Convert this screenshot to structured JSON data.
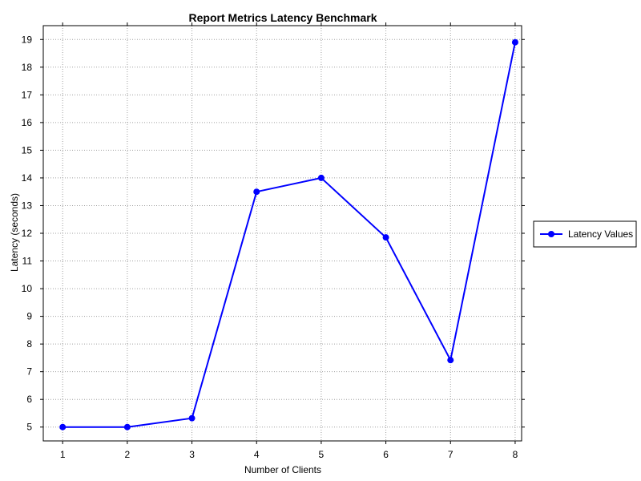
{
  "chart_data": {
    "type": "line",
    "title": "Report Metrics Latency Benchmark",
    "xlabel": "Number of Clients",
    "ylabel": "Latency (seconds)",
    "x": [
      1,
      2,
      3,
      4,
      5,
      6,
      7,
      8
    ],
    "xlim": [
      0.7,
      8.1
    ],
    "ylim": [
      4.5,
      19.5
    ],
    "xticks": [
      1,
      2,
      3,
      4,
      5,
      6,
      7,
      8
    ],
    "yticks": [
      5,
      6,
      7,
      8,
      9,
      10,
      11,
      12,
      13,
      14,
      15,
      16,
      17,
      18,
      19
    ],
    "grid": true,
    "legend_position": "right",
    "series": [
      {
        "name": "Latency Values",
        "color": "#0000ff",
        "marker": "circle",
        "values": [
          5.0,
          5.0,
          5.32,
          13.5,
          14.0,
          11.85,
          7.42,
          18.9
        ]
      }
    ]
  }
}
